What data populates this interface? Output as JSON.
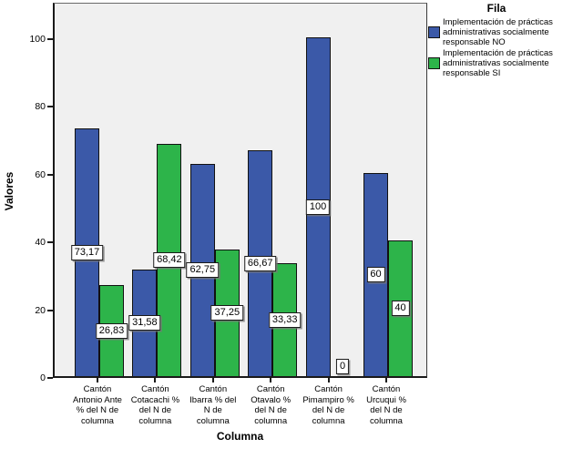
{
  "chart_data": {
    "type": "bar",
    "title": "",
    "xlabel": "Columna",
    "ylabel": "Valores",
    "ylim": [
      0,
      100
    ],
    "yticks": [
      "0",
      "20",
      "40",
      "60",
      "80",
      "100"
    ],
    "grid": false,
    "legend": {
      "title": "Fila",
      "position": "top-right"
    },
    "categories": [
      "Cantón Antonio Ante % del N de columna",
      "Cantón Cotacachi % del N de columna",
      "Cantón Ibarra % del N de columna",
      "Cantón Otavalo % del N de columna",
      "Cantón Pimampiro % del N de columna",
      "Cantón Urcuqui % del N de columna"
    ],
    "category_lines": [
      [
        "Cantón",
        "Antonio Ante",
        "% del N de",
        "columna"
      ],
      [
        "Cantón",
        "Cotacachi %",
        "del N de",
        "columna"
      ],
      [
        "Cantón",
        "Ibarra % del",
        "N de",
        "columna"
      ],
      [
        "Cantón",
        "Otavalo %",
        "del N de",
        "columna"
      ],
      [
        "Cantón",
        "Pimampiro %",
        "del N de",
        "columna"
      ],
      [
        "Cantón",
        "Urcuqui %",
        "del N de",
        "columna"
      ]
    ],
    "series": [
      {
        "name": "Implementación de prácticas administrativas socialmente responsable NO",
        "color": "#3B59A8",
        "values": [
          73.17,
          31.58,
          62.75,
          66.67,
          100,
          60
        ],
        "value_labels": [
          "73,17",
          "31,58",
          "62,75",
          "66,67",
          "100",
          "60"
        ]
      },
      {
        "name": "Implementación de prácticas administrativas socialmente responsable SI",
        "color": "#2DB44A",
        "values": [
          26.83,
          68.42,
          37.25,
          33.33,
          0,
          40
        ],
        "value_labels": [
          "26,83",
          "68,42",
          "37,25",
          "33,33",
          "0",
          "40"
        ]
      }
    ]
  },
  "colors": {
    "plot_background": "#F0F0F0",
    "bar_border": "#111111",
    "series_no_blue": "#3B59A8",
    "series_si_green": "#2DB44A"
  }
}
